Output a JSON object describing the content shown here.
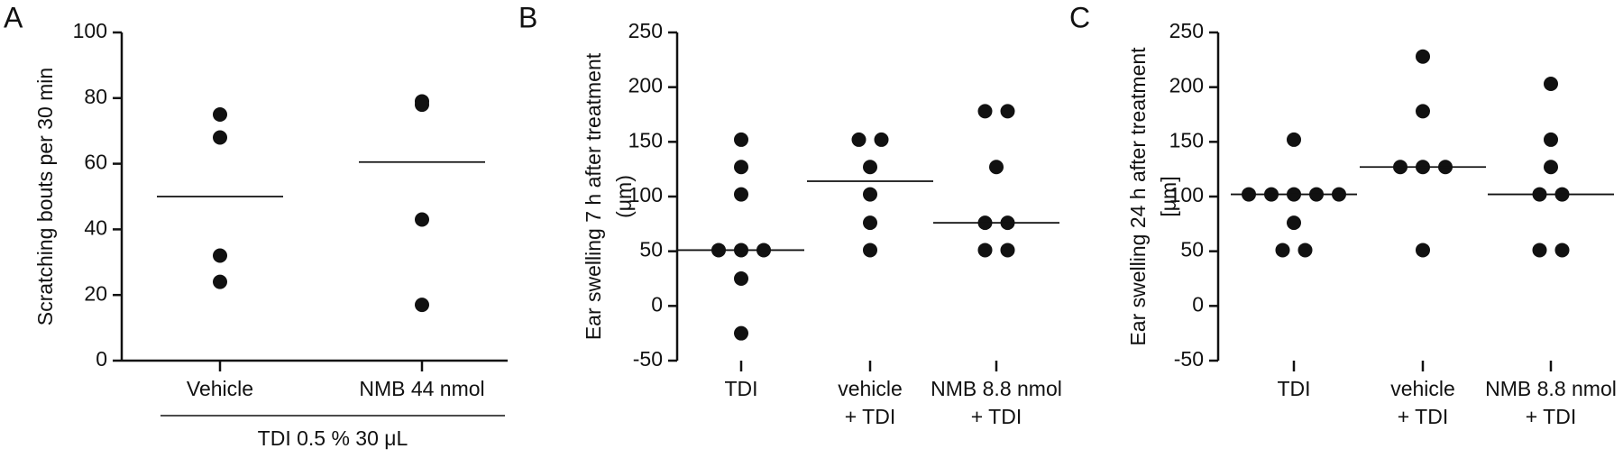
{
  "chart_data": [
    {
      "type": "dotplot",
      "panel": "A",
      "ylabel": [
        "Scratching bouts per 30 min"
      ],
      "categories": [
        [
          "Vehicle"
        ],
        [
          "NMB 44 nmol"
        ]
      ],
      "values": [
        [
          75,
          68,
          32,
          24
        ],
        [
          78,
          79,
          43,
          17
        ]
      ],
      "medians": [
        50,
        60.5
      ],
      "group_label": "TDI 0.5 % 30 μL",
      "color": "#111111",
      "ylim": [
        0,
        100
      ],
      "yticks": [
        0,
        20,
        40,
        60,
        80,
        100
      ],
      "x_axis_line": true
    },
    {
      "type": "dotplot",
      "panel": "B",
      "ylabel": [
        "Ear swelling 7 h after treatment",
        "(μm)"
      ],
      "categories": [
        [
          "TDI"
        ],
        [
          "vehicle",
          "+ TDI"
        ],
        [
          "NMB 8.8 nmol",
          "+ TDI"
        ]
      ],
      "values": [
        [
          152,
          127,
          102,
          51,
          51,
          51,
          25,
          -25
        ],
        [
          152,
          152,
          127,
          102,
          76,
          51
        ],
        [
          178,
          178,
          127,
          76,
          76,
          51,
          51
        ]
      ],
      "medians": [
        51,
        114,
        76
      ],
      "color": "#111111",
      "ylim": [
        -50,
        250
      ],
      "yticks": [
        -50,
        0,
        50,
        100,
        150,
        200,
        250
      ],
      "x_axis_line": false
    },
    {
      "type": "dotplot",
      "panel": "C",
      "ylabel": [
        "Ear swelling 24 h after treatment",
        "[μm]"
      ],
      "categories": [
        [
          "TDI"
        ],
        [
          "vehicle",
          "+ TDI"
        ],
        [
          "NMB 8.8 nmol",
          "+ TDI"
        ]
      ],
      "values": [
        [
          152,
          102,
          102,
          102,
          102,
          102,
          76,
          51,
          51
        ],
        [
          228,
          178,
          127,
          127,
          127,
          51
        ],
        [
          203,
          152,
          127,
          102,
          102,
          51,
          51
        ]
      ],
      "medians": [
        102,
        127,
        102
      ],
      "color": "#111111",
      "ylim": [
        -50,
        250
      ],
      "yticks": [
        -50,
        0,
        50,
        100,
        150,
        200,
        250
      ],
      "x_axis_line": false
    }
  ]
}
